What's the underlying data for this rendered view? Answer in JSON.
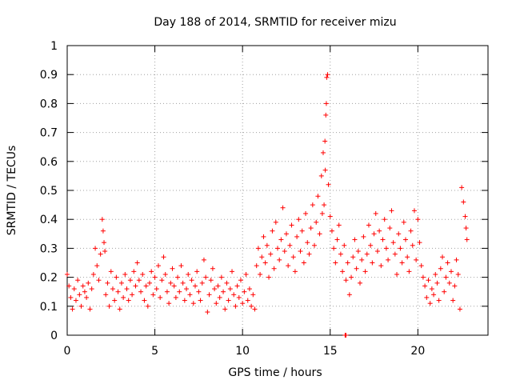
{
  "chart_data": {
    "type": "scatter",
    "title": "Day 188 of 2014, SRMTID for receiver mizu",
    "xlabel": "GPS time / hours",
    "ylabel": "SRMTID / TECUs",
    "xlim": [
      0,
      24
    ],
    "ylim": [
      0,
      1
    ],
    "x_ticks": [
      0,
      5,
      10,
      15,
      20
    ],
    "x_tick_labels": [
      "0",
      "5",
      "10",
      "15",
      "20"
    ],
    "y_ticks": [
      0,
      0.1,
      0.2,
      0.3,
      0.4,
      0.5,
      0.6,
      0.7,
      0.8,
      0.9,
      1
    ],
    "y_tick_labels": [
      "0",
      "0.1",
      "0.2",
      "0.3",
      "0.4",
      "0.5",
      "0.6",
      "0.7",
      "0.8",
      "0.9",
      "1"
    ],
    "grid": true,
    "marker": "+",
    "color": "#ff0000",
    "series": [
      {
        "name": "SRMTID",
        "x": [
          0.0,
          0.1,
          0.2,
          0.3,
          0.4,
          0.5,
          0.6,
          0.7,
          0.8,
          0.9,
          1.0,
          1.1,
          1.2,
          1.3,
          1.4,
          1.5,
          1.6,
          1.7,
          1.8,
          1.9,
          2.0,
          2.05,
          2.1,
          2.15,
          2.2,
          2.3,
          2.4,
          2.5,
          2.6,
          2.7,
          2.8,
          2.9,
          3.0,
          3.1,
          3.2,
          3.3,
          3.4,
          3.5,
          3.6,
          3.7,
          3.8,
          3.9,
          4.0,
          4.1,
          4.2,
          4.3,
          4.4,
          4.5,
          4.6,
          4.7,
          4.8,
          4.9,
          5.0,
          5.1,
          5.2,
          5.3,
          5.4,
          5.5,
          5.6,
          5.7,
          5.8,
          5.9,
          6.0,
          6.1,
          6.2,
          6.3,
          6.4,
          6.5,
          6.6,
          6.7,
          6.8,
          6.9,
          7.0,
          7.1,
          7.2,
          7.3,
          7.4,
          7.5,
          7.6,
          7.7,
          7.8,
          7.9,
          8.0,
          8.1,
          8.2,
          8.3,
          8.4,
          8.5,
          8.6,
          8.7,
          8.8,
          8.9,
          9.0,
          9.1,
          9.2,
          9.3,
          9.4,
          9.5,
          9.6,
          9.7,
          9.8,
          9.9,
          10.0,
          10.1,
          10.2,
          10.3,
          10.4,
          10.5,
          10.6,
          10.7,
          10.8,
          10.9,
          11.0,
          11.1,
          11.2,
          11.3,
          11.4,
          11.5,
          11.6,
          11.7,
          11.8,
          11.9,
          12.0,
          12.1,
          12.2,
          12.3,
          12.4,
          12.5,
          12.6,
          12.7,
          12.8,
          12.9,
          13.0,
          13.1,
          13.2,
          13.3,
          13.4,
          13.5,
          13.6,
          13.7,
          13.8,
          13.9,
          14.0,
          14.1,
          14.2,
          14.3,
          14.4,
          14.5,
          14.55,
          14.6,
          14.65,
          14.7,
          14.72,
          14.75,
          14.78,
          14.8,
          14.85,
          14.9,
          15.0,
          15.1,
          15.2,
          15.3,
          15.4,
          15.5,
          15.6,
          15.7,
          15.8,
          15.9,
          16.0,
          16.1,
          16.2,
          16.3,
          16.4,
          16.5,
          16.6,
          16.7,
          16.8,
          16.9,
          17.0,
          17.1,
          17.2,
          17.3,
          17.4,
          17.5,
          17.6,
          17.7,
          17.8,
          17.9,
          18.0,
          18.1,
          18.2,
          18.3,
          18.4,
          18.5,
          18.6,
          18.7,
          18.8,
          18.9,
          19.0,
          19.1,
          19.2,
          19.3,
          19.4,
          19.5,
          19.6,
          19.7,
          19.8,
          19.9,
          20.0,
          20.1,
          20.2,
          20.3,
          20.4,
          20.5,
          20.6,
          20.7,
          20.8,
          20.9,
          21.0,
          21.1,
          21.2,
          21.3,
          21.4,
          21.5,
          21.6,
          21.7,
          21.8,
          21.9,
          22.0,
          22.1,
          22.2,
          22.3,
          22.4,
          22.5,
          22.6,
          22.7,
          22.75,
          22.8,
          15.85,
          15.9
        ],
        "y": [
          0.21,
          0.17,
          0.13,
          0.09,
          0.16,
          0.12,
          0.19,
          0.14,
          0.1,
          0.17,
          0.15,
          0.13,
          0.18,
          0.09,
          0.16,
          0.21,
          0.3,
          0.24,
          0.19,
          0.28,
          0.4,
          0.36,
          0.32,
          0.29,
          0.14,
          0.18,
          0.1,
          0.22,
          0.16,
          0.12,
          0.2,
          0.15,
          0.09,
          0.18,
          0.13,
          0.21,
          0.16,
          0.12,
          0.19,
          0.14,
          0.22,
          0.17,
          0.25,
          0.19,
          0.15,
          0.21,
          0.12,
          0.17,
          0.1,
          0.18,
          0.22,
          0.14,
          0.2,
          0.16,
          0.24,
          0.13,
          0.19,
          0.27,
          0.21,
          0.15,
          0.11,
          0.18,
          0.23,
          0.17,
          0.13,
          0.2,
          0.15,
          0.24,
          0.18,
          0.12,
          0.16,
          0.21,
          0.14,
          0.19,
          0.11,
          0.17,
          0.22,
          0.15,
          0.12,
          0.18,
          0.26,
          0.2,
          0.08,
          0.14,
          0.19,
          0.23,
          0.16,
          0.11,
          0.17,
          0.13,
          0.2,
          0.15,
          0.09,
          0.18,
          0.12,
          0.16,
          0.22,
          0.14,
          0.1,
          0.17,
          0.13,
          0.19,
          0.11,
          0.15,
          0.21,
          0.12,
          0.16,
          0.1,
          0.14,
          0.09,
          0.24,
          0.3,
          0.21,
          0.27,
          0.34,
          0.25,
          0.31,
          0.2,
          0.28,
          0.36,
          0.23,
          0.39,
          0.3,
          0.26,
          0.33,
          0.44,
          0.29,
          0.35,
          0.24,
          0.31,
          0.38,
          0.27,
          0.22,
          0.34,
          0.4,
          0.29,
          0.36,
          0.25,
          0.42,
          0.32,
          0.28,
          0.37,
          0.45,
          0.31,
          0.39,
          0.48,
          0.35,
          0.55,
          0.42,
          0.63,
          0.45,
          0.67,
          0.57,
          0.76,
          0.8,
          0.89,
          0.9,
          0.52,
          0.41,
          0.36,
          0.3,
          0.25,
          0.33,
          0.38,
          0.28,
          0.22,
          0.31,
          0.19,
          0.25,
          0.14,
          0.2,
          0.27,
          0.33,
          0.23,
          0.29,
          0.18,
          0.26,
          0.34,
          0.22,
          0.28,
          0.38,
          0.31,
          0.25,
          0.35,
          0.42,
          0.29,
          0.36,
          0.24,
          0.33,
          0.4,
          0.3,
          0.26,
          0.37,
          0.43,
          0.32,
          0.28,
          0.21,
          0.35,
          0.3,
          0.25,
          0.39,
          0.33,
          0.27,
          0.22,
          0.36,
          0.31,
          0.43,
          0.26,
          0.4,
          0.32,
          0.24,
          0.2,
          0.17,
          0.13,
          0.19,
          0.11,
          0.16,
          0.14,
          0.21,
          0.18,
          0.12,
          0.23,
          0.27,
          0.15,
          0.2,
          0.25,
          0.18,
          0.22,
          0.12,
          0.17,
          0.26,
          0.21,
          0.09,
          0.51,
          0.46,
          0.41,
          0.37,
          0.33,
          0.0,
          0.0
        ]
      }
    ]
  }
}
